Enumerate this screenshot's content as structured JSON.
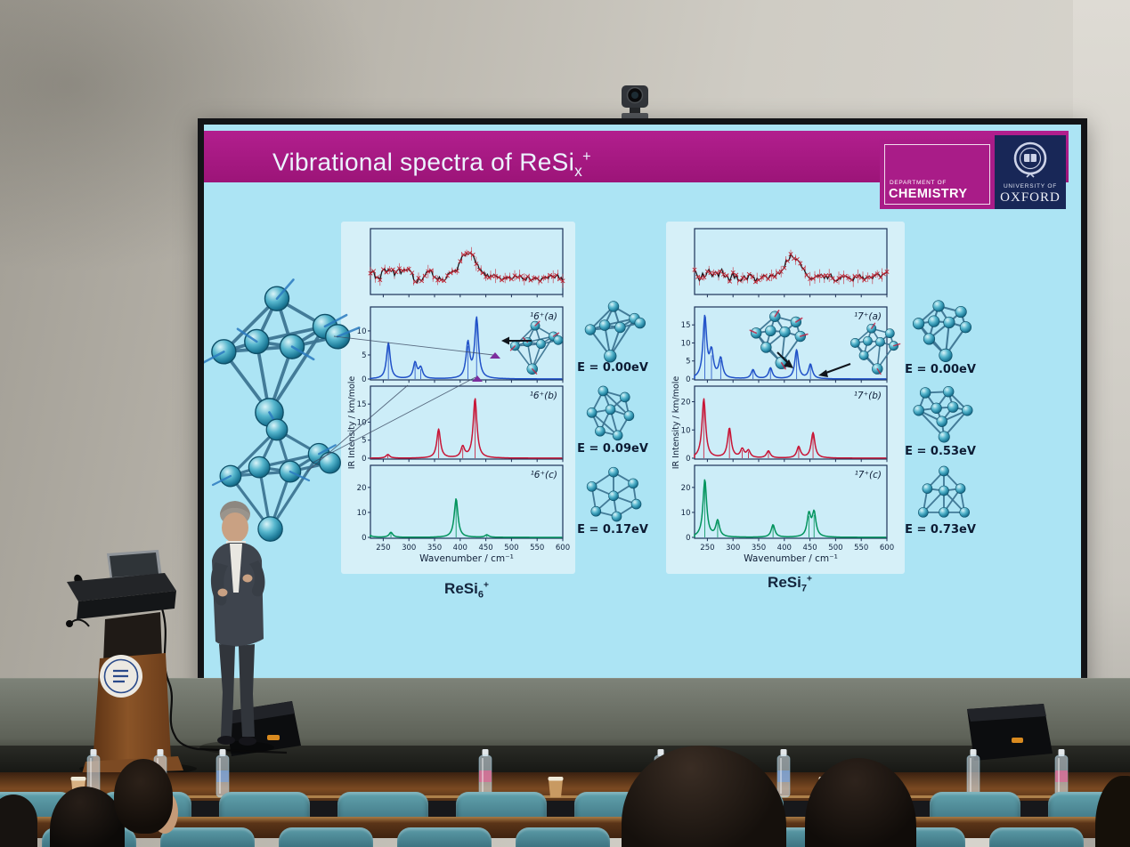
{
  "slide": {
    "title": {
      "main": "Vibrational spectra of ReSi",
      "sub": "x",
      "sup": "+"
    },
    "logos": {
      "chemistry": {
        "dept": "DEPARTMENT OF",
        "name": "CHEMISTRY"
      },
      "oxford": {
        "univ": "UNIVERSITY OF",
        "name": "OXFORD"
      }
    },
    "captions": [
      {
        "base": "ReSi",
        "sub": "6",
        "sup": "+"
      },
      {
        "base": "ReSi",
        "sub": "7",
        "sup": "+"
      }
    ]
  },
  "colors": {
    "title_bar": "#a81b87",
    "slide_bg": "#ace4f4",
    "series_blue": "#2051c8",
    "series_red": "#c81536",
    "series_green": "#00935c",
    "experiment_line": "#16161b",
    "experiment_marker": "#c3202f",
    "frame": "#1d3258"
  },
  "chart_data": [
    {
      "type": "line",
      "title": "ReSi6+",
      "xlabel": "Wavenumber / cm⁻¹",
      "ylabel": "IR Intensity / km/mole",
      "xlim": [
        225,
        600
      ],
      "xticks": [
        250,
        300,
        350,
        400,
        450,
        500,
        550,
        600
      ],
      "plots": [
        {
          "kind": "experiment",
          "label": "",
          "line_color": "#16161b",
          "marker": "x",
          "marker_color": "#c3202f",
          "band_center_cm": 400
        },
        {
          "kind": "computed",
          "label": "¹6⁺(a)",
          "energy": "E = 0.00eV",
          "color_key": "series_blue",
          "ylim": [
            0,
            13.5
          ],
          "yticks": [
            0,
            5,
            10
          ],
          "peaks": [
            [
              260,
              7.5
            ],
            [
              312,
              3.3
            ],
            [
              323,
              2.2
            ],
            [
              415,
              7.3
            ],
            [
              432,
              12.5
            ]
          ]
        },
        {
          "kind": "computed",
          "label": "¹6⁺(b)",
          "energy": "E = 0.09eV",
          "color_key": "series_red",
          "ylim": [
            0,
            18
          ],
          "yticks": [
            0,
            5,
            10,
            15
          ],
          "peaks": [
            [
              259,
              1.0
            ],
            [
              358,
              8.0
            ],
            [
              405,
              3.0
            ],
            [
              429,
              16.5
            ]
          ]
        },
        {
          "kind": "computed",
          "label": "¹6⁺(c)",
          "energy": "E = 0.17eV",
          "color_key": "series_green",
          "ylim": [
            0,
            26
          ],
          "yticks": [
            0,
            10,
            20
          ],
          "peaks": [
            [
              218,
              3.0
            ],
            [
              265,
              2.0
            ],
            [
              392,
              15.5
            ],
            [
              452,
              1.0
            ]
          ]
        }
      ]
    },
    {
      "type": "line",
      "title": "ReSi7+",
      "xlabel": "Wavenumber / cm⁻¹",
      "ylabel": "IR Intensity / km/mole",
      "xlim": [
        225,
        600
      ],
      "xticks": [
        250,
        300,
        350,
        400,
        450,
        500,
        550,
        600
      ],
      "plots": [
        {
          "kind": "experiment",
          "label": "",
          "line_color": "#16161b",
          "marker": "x",
          "marker_color": "#c3202f",
          "band_center_cm": 400
        },
        {
          "kind": "computed",
          "label": "¹7⁺(a)",
          "energy": "E = 0.00eV",
          "color_key": "series_blue",
          "ylim": [
            0,
            18
          ],
          "yticks": [
            0,
            5,
            10,
            15
          ],
          "peaks": [
            [
              245,
              17
            ],
            [
              258,
              7
            ],
            [
              276,
              5.5
            ],
            [
              339,
              2.5
            ],
            [
              373,
              3
            ],
            [
              424,
              8
            ],
            [
              451,
              4
            ]
          ]
        },
        {
          "kind": "computed",
          "label": "¹7⁺(b)",
          "energy": "E = 0.53eV",
          "color_key": "series_red",
          "ylim": [
            0,
            23
          ],
          "yticks": [
            0,
            10,
            20
          ],
          "peaks": [
            [
              243,
              21
            ],
            [
              293,
              10.5
            ],
            [
              318,
              3
            ],
            [
              330,
              2.5
            ],
            [
              369,
              2.5
            ],
            [
              428,
              4
            ],
            [
              456,
              9
            ]
          ]
        },
        {
          "kind": "computed",
          "label": "¹7⁺(c)",
          "energy": "E = 0.73eV",
          "color_key": "series_green",
          "ylim": [
            0,
            26
          ],
          "yticks": [
            0,
            10,
            20
          ],
          "peaks": [
            [
              245,
              23
            ],
            [
              270,
              6.5
            ],
            [
              378,
              5
            ],
            [
              448,
              9
            ],
            [
              458,
              9.5
            ]
          ]
        }
      ]
    }
  ]
}
